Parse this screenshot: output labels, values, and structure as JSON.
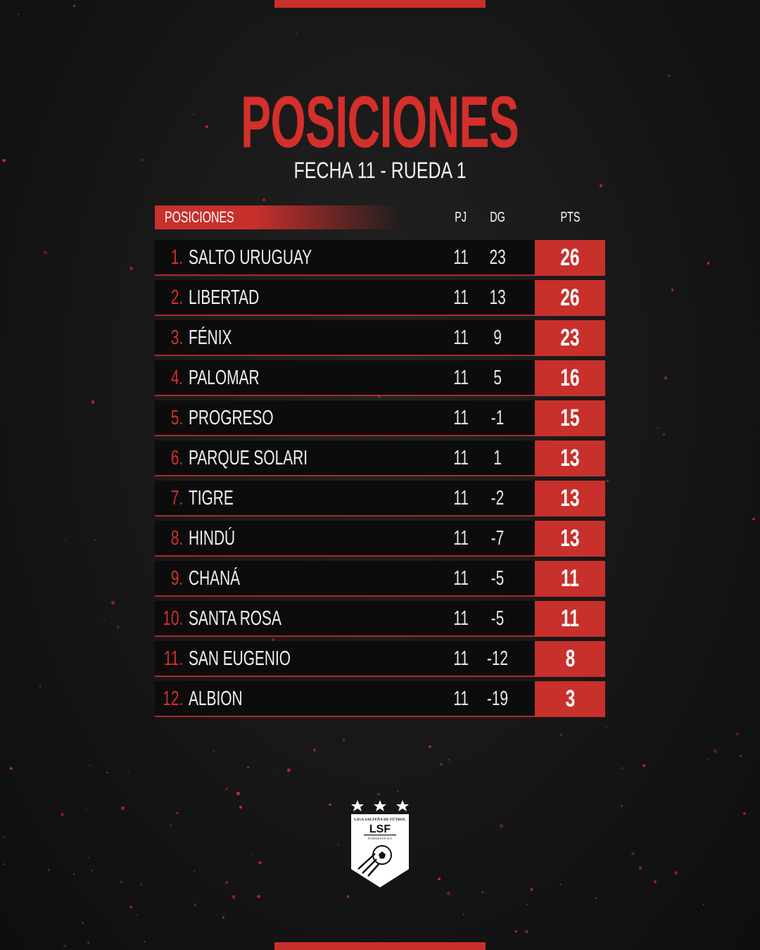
{
  "header": {
    "title": "POSICIONES",
    "subtitle": "FECHA 11 - RUEDA 1"
  },
  "table": {
    "columns": {
      "team": "POSICIONES",
      "pj": "PJ",
      "dg": "DG",
      "pts": "PTS"
    },
    "rows": [
      {
        "pos": "1.",
        "team": "SALTO URUGUAY",
        "pj": "11",
        "dg": "23",
        "pts": "26"
      },
      {
        "pos": "2.",
        "team": "LIBERTAD",
        "pj": "11",
        "dg": "13",
        "pts": "26"
      },
      {
        "pos": "3.",
        "team": "FÉNIX",
        "pj": "11",
        "dg": "9",
        "pts": "23"
      },
      {
        "pos": "4.",
        "team": "PALOMAR",
        "pj": "11",
        "dg": "5",
        "pts": "16"
      },
      {
        "pos": "5.",
        "team": "PROGRESO",
        "pj": "11",
        "dg": "-1",
        "pts": "15"
      },
      {
        "pos": "6.",
        "team": "PARQUE SOLARI",
        "pj": "11",
        "dg": "1",
        "pts": "13"
      },
      {
        "pos": "7.",
        "team": "TIGRE",
        "pj": "11",
        "dg": "-2",
        "pts": "13"
      },
      {
        "pos": "8.",
        "team": "HINDÚ",
        "pj": "11",
        "dg": "-7",
        "pts": "13"
      },
      {
        "pos": "9.",
        "team": "CHANÁ",
        "pj": "11",
        "dg": "-5",
        "pts": "11"
      },
      {
        "pos": "10.",
        "team": "SANTA ROSA",
        "pj": "11",
        "dg": "-5",
        "pts": "11"
      },
      {
        "pos": "11.",
        "team": "SAN EUGENIO",
        "pj": "11",
        "dg": "-12",
        "pts": "8"
      },
      {
        "pos": "12.",
        "team": "ALBION",
        "pj": "11",
        "dg": "-19",
        "pts": "3"
      }
    ]
  },
  "logo": {
    "top": "LIGA SALTEÑA DE FÚTBOL",
    "abbr": "LSF",
    "founded": "FUNDADA EN 1911"
  },
  "colors": {
    "accent": "#c8302c",
    "background": "#161616"
  }
}
